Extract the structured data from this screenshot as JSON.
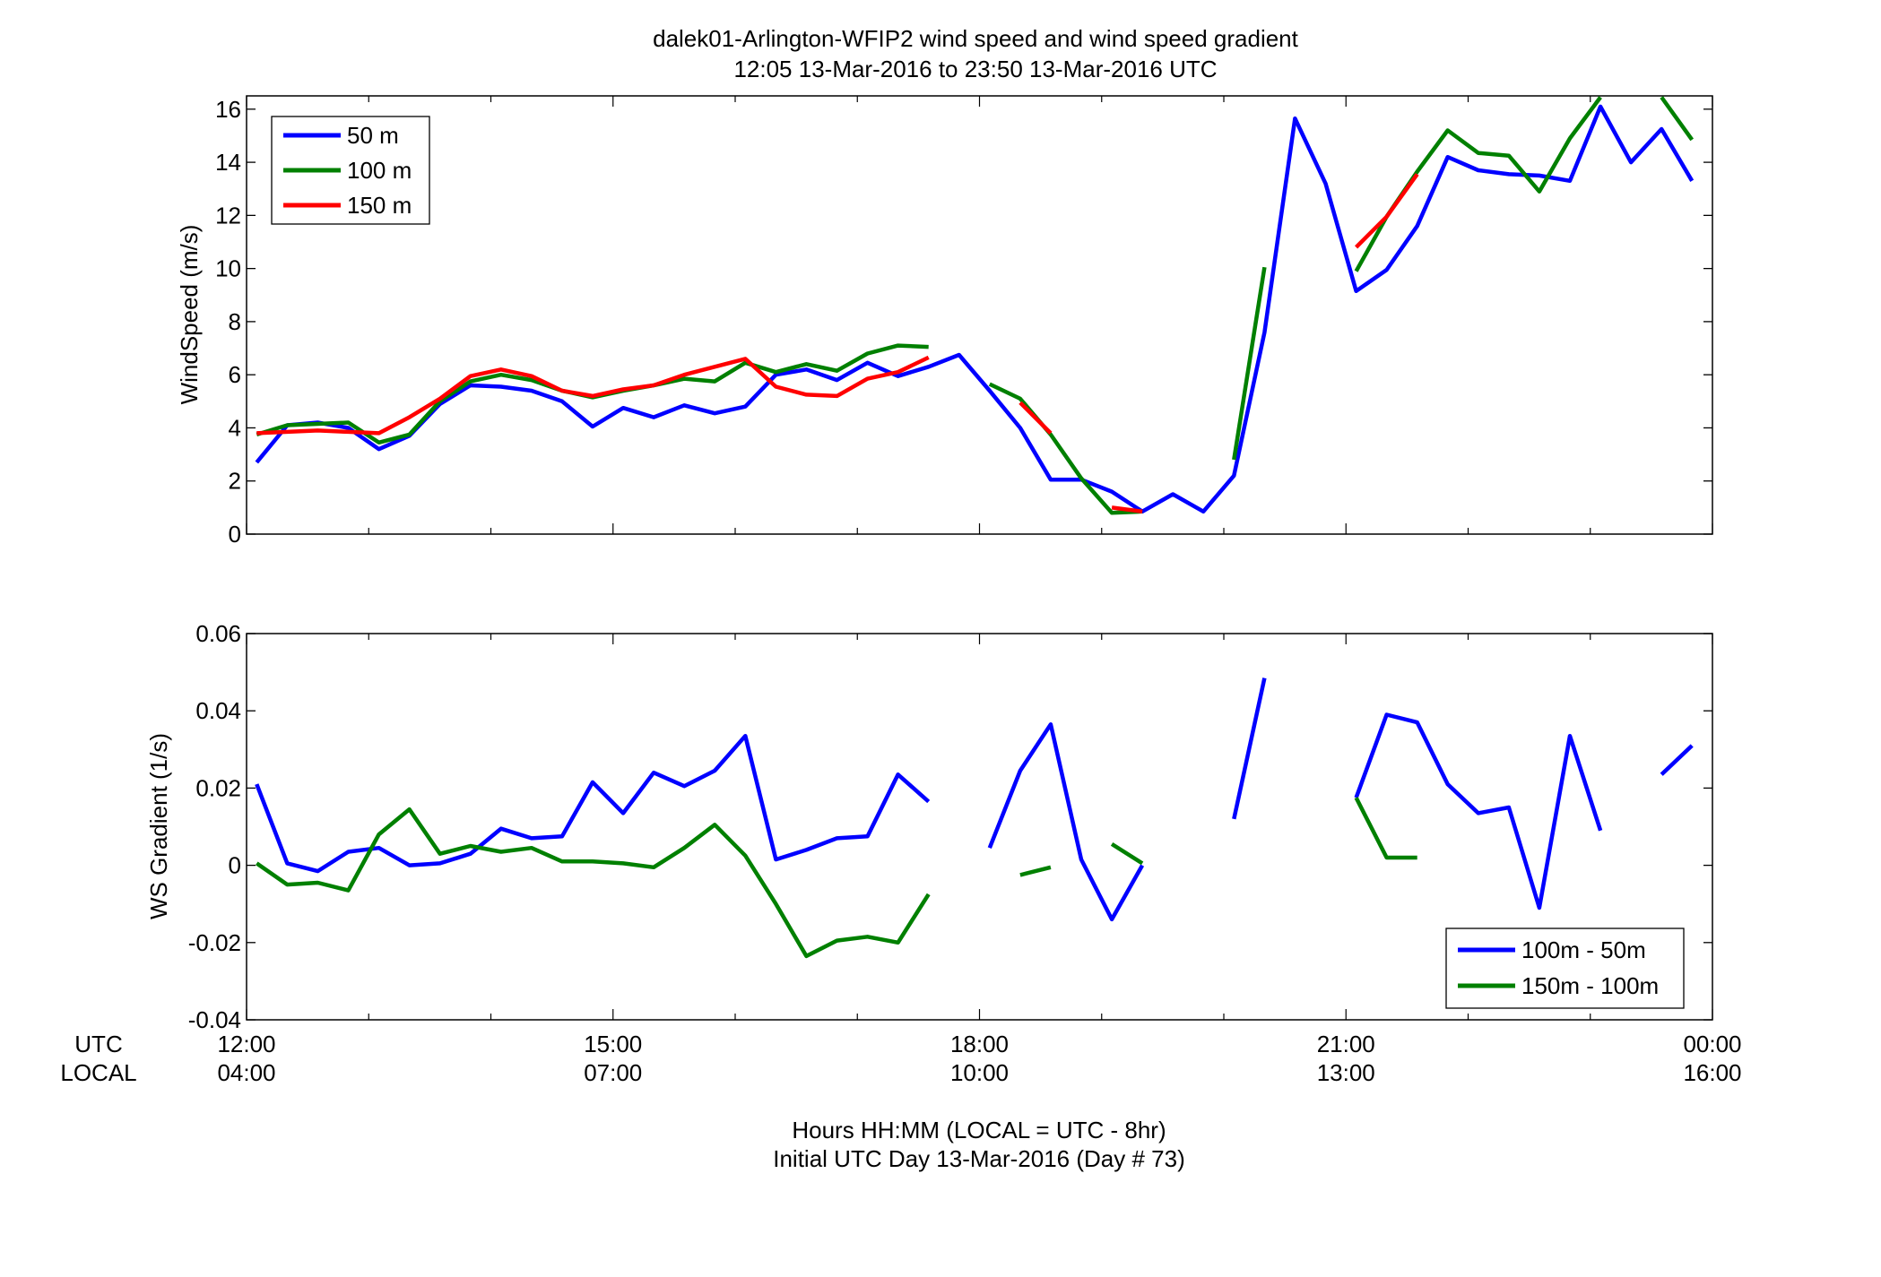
{
  "title": {
    "line1": "dalek01-Arlington-WFIP2  wind speed and wind speed gradient",
    "line2": "12:05 13-Mar-2016 to 23:50 13-Mar-2016  UTC"
  },
  "x_axis": {
    "row_label_utc": "UTC",
    "row_label_local": "LOCAL",
    "ticks_hours": [
      12,
      15,
      18,
      21,
      24
    ],
    "utc_labels": [
      "12:00",
      "15:00",
      "18:00",
      "21:00",
      "00:00"
    ],
    "local_labels": [
      "04:00",
      "07:00",
      "10:00",
      "13:00",
      "16:00"
    ],
    "xlabel_line1": "Hours HH:MM  (LOCAL = UTC - 8hr)",
    "xlabel_line2": "Initial UTC Day 13-Mar-2016 (Day # 73)",
    "xlim": [
      12,
      24
    ]
  },
  "colors": {
    "blue": "#0000ff",
    "green": "#008000",
    "red": "#ff0000"
  },
  "chart_data": [
    {
      "type": "line",
      "ylabel": "WindSpeed (m/s)",
      "ylim": [
        0,
        16.5
      ],
      "yticks": [
        0,
        2,
        4,
        6,
        8,
        10,
        12,
        14,
        16
      ],
      "grid": false,
      "legend": "top-left",
      "series": [
        {
          "name": "50 m",
          "color": "#0000ff",
          "points": [
            [
              12.083,
              2.7
            ],
            [
              12.333,
              4.1
            ],
            [
              12.583,
              4.2
            ],
            [
              12.833,
              4.0
            ],
            [
              13.083,
              3.2
            ],
            [
              13.333,
              3.7
            ],
            [
              13.583,
              4.9
            ],
            [
              13.833,
              5.6
            ],
            [
              14.083,
              5.55
            ],
            [
              14.333,
              5.4
            ],
            [
              14.583,
              5.0
            ],
            [
              14.833,
              4.05
            ],
            [
              15.083,
              4.75
            ],
            [
              15.333,
              4.4
            ],
            [
              15.583,
              4.85
            ],
            [
              15.833,
              4.55
            ],
            [
              16.083,
              4.8
            ],
            [
              16.333,
              6.0
            ],
            [
              16.583,
              6.2
            ],
            [
              16.833,
              5.8
            ],
            [
              17.083,
              6.45
            ],
            [
              17.333,
              5.95
            ],
            [
              17.583,
              6.3
            ],
            [
              17.833,
              6.75
            ],
            [
              18.083,
              5.4
            ],
            [
              18.333,
              4.0
            ],
            [
              18.583,
              2.05
            ],
            [
              18.833,
              2.05
            ],
            [
              19.083,
              1.6
            ],
            [
              19.333,
              0.85
            ],
            [
              19.583,
              1.5
            ],
            [
              19.833,
              0.85
            ],
            [
              20.083,
              2.2
            ],
            [
              20.333,
              7.6
            ],
            [
              20.583,
              15.65
            ],
            [
              20.833,
              13.2
            ],
            [
              21.083,
              9.15
            ],
            [
              21.333,
              9.95
            ],
            [
              21.583,
              11.6
            ],
            [
              21.833,
              14.2
            ],
            [
              22.083,
              13.7
            ],
            [
              22.333,
              13.55
            ],
            [
              22.583,
              13.5
            ],
            [
              22.833,
              13.3
            ],
            [
              23.083,
              16.1
            ],
            [
              23.333,
              14.0
            ],
            [
              23.583,
              15.25
            ],
            [
              23.833,
              13.3
            ]
          ]
        },
        {
          "name": "100 m",
          "color": "#008000",
          "points": [
            [
              12.083,
              3.75
            ],
            [
              12.333,
              4.1
            ],
            [
              12.583,
              4.15
            ],
            [
              12.833,
              4.2
            ],
            [
              13.083,
              3.45
            ],
            [
              13.333,
              3.75
            ],
            [
              13.583,
              5.0
            ],
            [
              13.833,
              5.75
            ],
            [
              14.083,
              6.0
            ],
            [
              14.333,
              5.8
            ],
            [
              14.583,
              5.4
            ],
            [
              14.833,
              5.15
            ],
            [
              15.083,
              5.4
            ],
            [
              15.333,
              5.6
            ],
            [
              15.583,
              5.85
            ],
            [
              15.833,
              5.75
            ],
            [
              16.083,
              6.45
            ],
            [
              16.333,
              6.1
            ],
            [
              16.583,
              6.4
            ],
            [
              16.833,
              6.15
            ],
            [
              17.083,
              6.8
            ],
            [
              17.333,
              7.1
            ],
            [
              17.583,
              7.05
            ],
            null,
            [
              18.083,
              5.65
            ],
            [
              18.333,
              5.1
            ],
            [
              18.583,
              3.75
            ],
            [
              18.833,
              2.1
            ],
            [
              19.083,
              0.8
            ],
            [
              19.333,
              0.85
            ],
            null,
            null,
            [
              20.083,
              2.8
            ],
            [
              20.333,
              10.05
            ],
            null,
            null,
            [
              21.083,
              9.9
            ],
            [
              21.333,
              11.95
            ],
            [
              21.583,
              13.65
            ],
            [
              21.833,
              15.2
            ],
            [
              22.083,
              14.35
            ],
            [
              22.333,
              14.25
            ],
            [
              22.583,
              12.9
            ],
            [
              22.833,
              14.9
            ],
            [
              23.083,
              16.45
            ],
            null,
            [
              23.583,
              16.45
            ],
            [
              23.833,
              14.85
            ]
          ]
        },
        {
          "name": "150 m",
          "color": "#ff0000",
          "points": [
            [
              12.083,
              3.8
            ],
            [
              12.333,
              3.85
            ],
            [
              12.583,
              3.9
            ],
            [
              12.833,
              3.85
            ],
            [
              13.083,
              3.8
            ],
            [
              13.333,
              4.4
            ],
            [
              13.583,
              5.1
            ],
            [
              13.833,
              5.95
            ],
            [
              14.083,
              6.2
            ],
            [
              14.333,
              5.95
            ],
            [
              14.583,
              5.4
            ],
            [
              14.833,
              5.2
            ],
            [
              15.083,
              5.45
            ],
            [
              15.333,
              5.6
            ],
            [
              15.583,
              6.0
            ],
            [
              15.833,
              6.3
            ],
            [
              16.083,
              6.6
            ],
            [
              16.333,
              5.55
            ],
            [
              16.583,
              5.25
            ],
            [
              16.833,
              5.2
            ],
            [
              17.083,
              5.85
            ],
            [
              17.333,
              6.1
            ],
            [
              17.583,
              6.65
            ],
            null,
            null,
            [
              18.333,
              4.95
            ],
            [
              18.583,
              3.8
            ],
            null,
            [
              19.083,
              1.0
            ],
            [
              19.333,
              0.85
            ],
            null,
            null,
            null,
            null,
            null,
            null,
            [
              21.083,
              10.8
            ],
            [
              21.333,
              11.95
            ],
            [
              21.583,
              13.55
            ],
            null,
            null,
            null,
            null,
            null,
            null,
            null,
            null,
            null
          ]
        }
      ]
    },
    {
      "type": "line",
      "ylabel": "WS Gradient (1/s)",
      "ylim": [
        -0.04,
        0.06
      ],
      "yticks": [
        -0.04,
        -0.02,
        0,
        0.02,
        0.04,
        0.06
      ],
      "ytick_labels": [
        "-0.04",
        "-0.02",
        "0",
        "0.02",
        "0.04",
        "0.06"
      ],
      "grid": false,
      "legend": "bottom-right",
      "series": [
        {
          "name": "100m - 50m",
          "color": "#0000ff",
          "points": [
            [
              12.083,
              0.021
            ],
            [
              12.333,
              0.0005
            ],
            [
              12.583,
              -0.0015
            ],
            [
              12.833,
              0.0035
            ],
            [
              13.083,
              0.0045
            ],
            [
              13.333,
              0.0
            ],
            [
              13.583,
              0.0005
            ],
            [
              13.833,
              0.003
            ],
            [
              14.083,
              0.0095
            ],
            [
              14.333,
              0.007
            ],
            [
              14.583,
              0.0075
            ],
            [
              14.833,
              0.0215
            ],
            [
              15.083,
              0.0135
            ],
            [
              15.333,
              0.024
            ],
            [
              15.583,
              0.0205
            ],
            [
              15.833,
              0.0245
            ],
            [
              16.083,
              0.0335
            ],
            [
              16.333,
              0.0015
            ],
            [
              16.583,
              0.004
            ],
            [
              16.833,
              0.007
            ],
            [
              17.083,
              0.0075
            ],
            [
              17.333,
              0.0235
            ],
            [
              17.583,
              0.0165
            ],
            null,
            [
              18.083,
              0.0045
            ],
            [
              18.333,
              0.0245
            ],
            [
              18.583,
              0.0365
            ],
            [
              18.833,
              0.0015
            ],
            [
              19.083,
              -0.014
            ],
            [
              19.333,
              0.0
            ],
            null,
            null,
            [
              20.083,
              0.012
            ],
            [
              20.333,
              0.0485
            ],
            null,
            null,
            [
              21.083,
              0.0175
            ],
            [
              21.333,
              0.039
            ],
            [
              21.583,
              0.037
            ],
            [
              21.833,
              0.021
            ],
            [
              22.083,
              0.0135
            ],
            [
              22.333,
              0.015
            ],
            [
              22.583,
              -0.011
            ],
            [
              22.833,
              0.0335
            ],
            [
              23.083,
              0.009
            ],
            null,
            [
              23.583,
              0.0235
            ],
            [
              23.833,
              0.031
            ]
          ]
        },
        {
          "name": "150m - 100m",
          "color": "#008000",
          "points": [
            [
              12.083,
              0.0005
            ],
            [
              12.333,
              -0.005
            ],
            [
              12.583,
              -0.0045
            ],
            [
              12.833,
              -0.0065
            ],
            [
              13.083,
              0.008
            ],
            [
              13.333,
              0.0145
            ],
            [
              13.583,
              0.003
            ],
            [
              13.833,
              0.005
            ],
            [
              14.083,
              0.0035
            ],
            [
              14.333,
              0.0045
            ],
            [
              14.583,
              0.001
            ],
            [
              14.833,
              0.001
            ],
            [
              15.083,
              0.0005
            ],
            [
              15.333,
              -0.0005
            ],
            [
              15.583,
              0.0045
            ],
            [
              15.833,
              0.0105
            ],
            [
              16.083,
              0.0025
            ],
            [
              16.333,
              -0.01
            ],
            [
              16.583,
              -0.0235
            ],
            [
              16.833,
              -0.0195
            ],
            [
              17.083,
              -0.0185
            ],
            [
              17.333,
              -0.02
            ],
            [
              17.583,
              -0.0075
            ],
            null,
            null,
            [
              18.333,
              -0.0025
            ],
            [
              18.583,
              -0.0005
            ],
            null,
            [
              19.083,
              0.0055
            ],
            [
              19.333,
              0.0005
            ],
            null,
            null,
            null,
            null,
            null,
            null,
            [
              21.083,
              0.0175
            ],
            [
              21.333,
              0.002
            ],
            [
              21.583,
              0.002
            ],
            null,
            null,
            null,
            null,
            null,
            null,
            null,
            null,
            null
          ]
        }
      ]
    }
  ]
}
